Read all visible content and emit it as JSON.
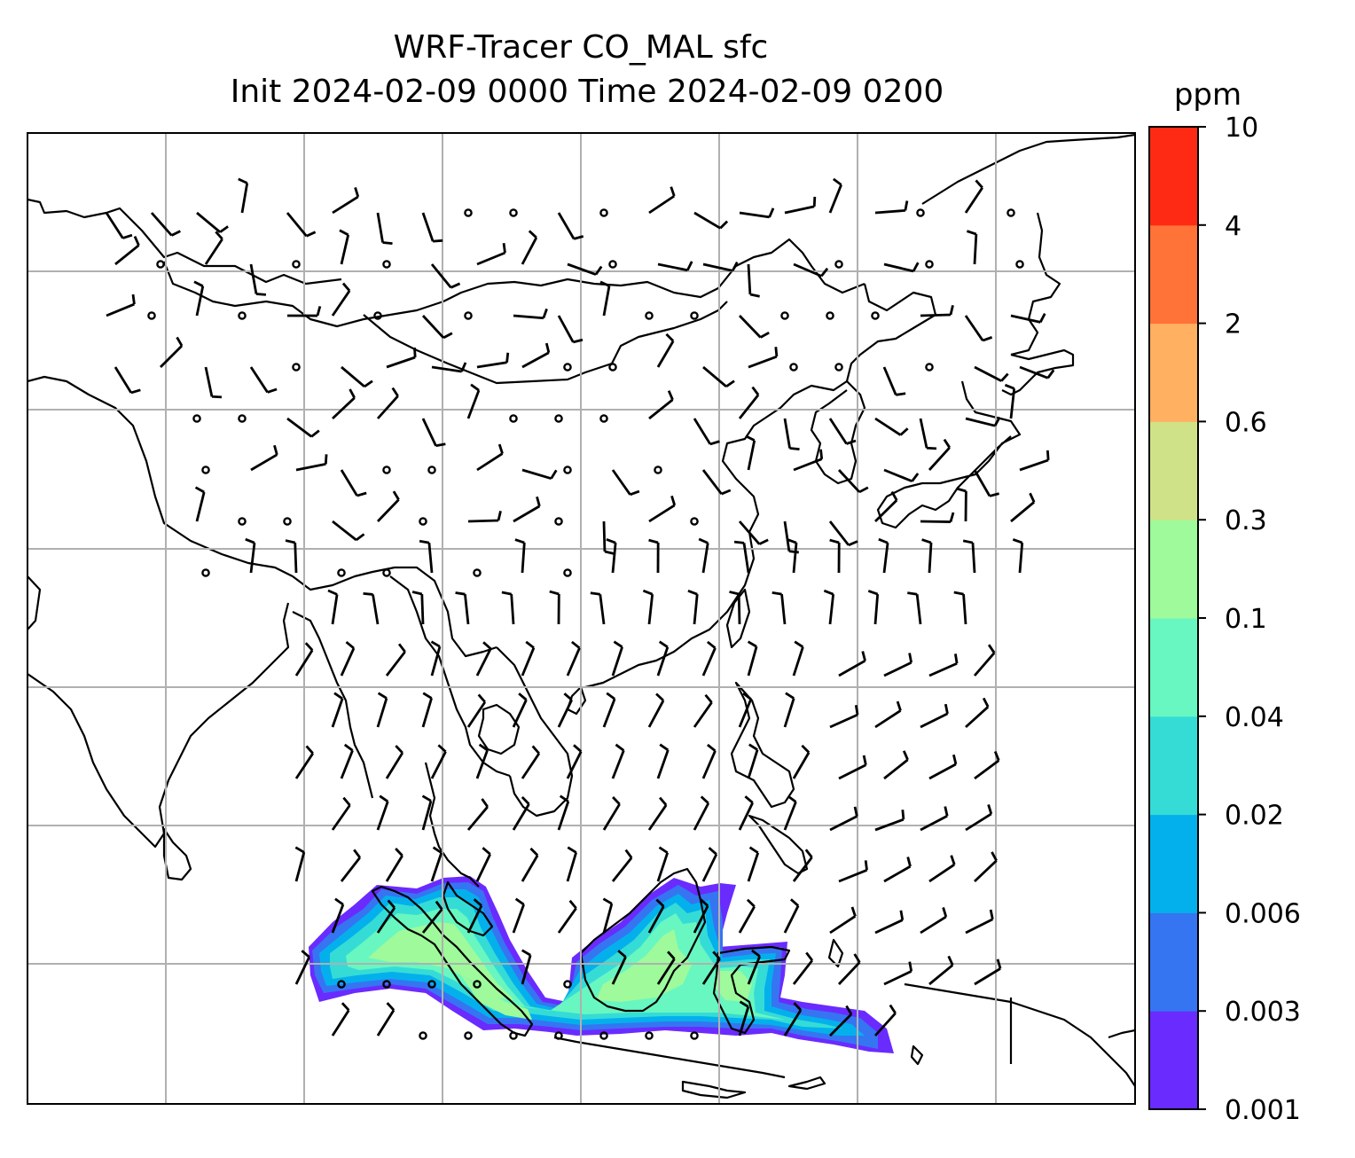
{
  "chart_data": {
    "type": "contour-map",
    "title": "WRF-Tracer CO_MAL sfc",
    "subtitle": "Init 2024-02-09 0000 Time 2024-02-09 0200",
    "colorbar": {
      "unit": "ppm",
      "levels": [
        "0.001",
        "0.003",
        "0.006",
        "0.02",
        "0.04",
        "0.1",
        "0.3",
        "0.6",
        "2",
        "4",
        "10"
      ],
      "colors": [
        "#6a2bff",
        "#3575f2",
        "#04b0ec",
        "#35dcd6",
        "#68f7c0",
        "#9efa9a",
        "#d0e287",
        "#ffb060",
        "#ff7238",
        "#ff2a14"
      ]
    },
    "grid": true,
    "features": [
      "coastlines",
      "wind-barbs",
      "tracer-plume"
    ]
  }
}
